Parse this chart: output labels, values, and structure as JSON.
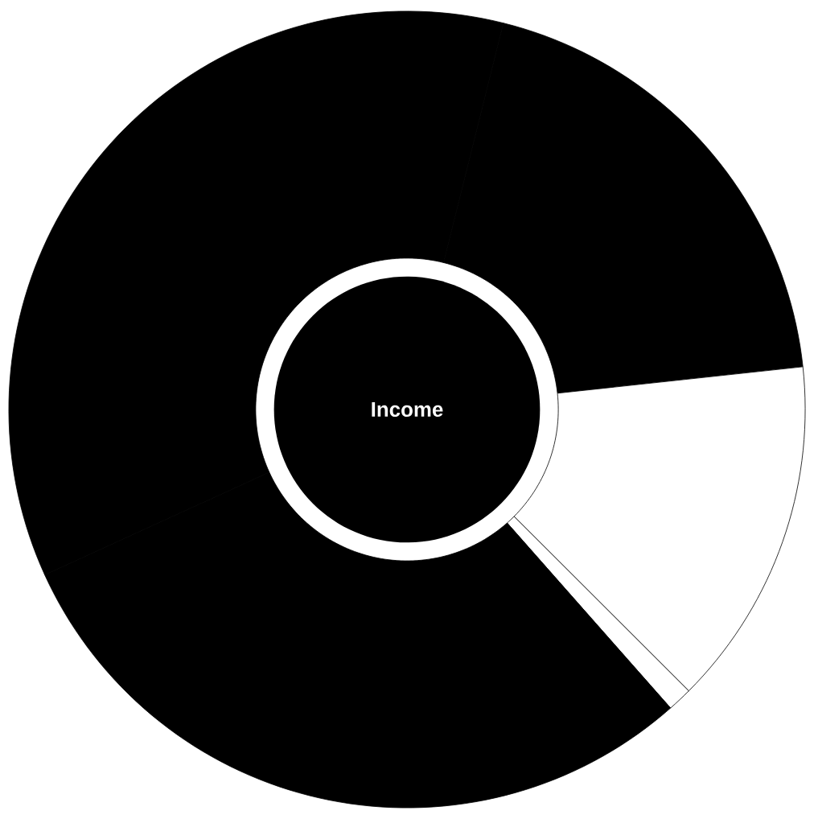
{
  "chart_data": {
    "type": "donut",
    "title": "Income",
    "categories": [
      null,
      null,
      null,
      null,
      null
    ],
    "values": [
      19.4,
      14.2,
      1,
      29.7,
      35.7
    ],
    "colors": [
      "#000000",
      "#ffffff",
      "#ffffff",
      "#000000",
      "#000000"
    ]
  }
}
